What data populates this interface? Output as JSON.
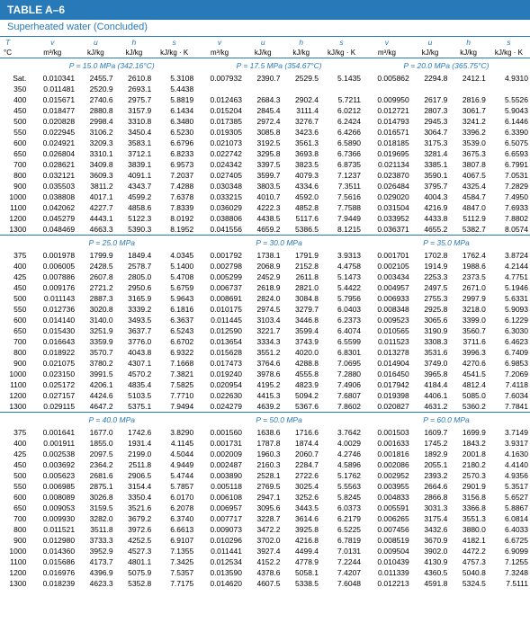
{
  "table_label": "TABLE A–6",
  "subtitle": "Superheated water (Concluded)",
  "header": {
    "T": "T",
    "T_unit": "°C",
    "v": "v",
    "v_unit": "m³/kg",
    "u": "u",
    "u_unit": "kJ/kg",
    "h": "h",
    "h_unit": "kJ/kg",
    "s": "s",
    "s_unit": "kJ/kg · K"
  },
  "blocks": [
    {
      "pressures": [
        "P = 15.0 MPa (342.16°C)",
        "P = 17.5 MPa (354.67°C)",
        "P = 20.0 MPa (365.75°C)"
      ],
      "rows": [
        {
          "T": "Sat.",
          "a": [
            "0.010341",
            "2455.7",
            "2610.8",
            "5.3108"
          ],
          "b": [
            "0.007932",
            "2390.7",
            "2529.5",
            "5.1435"
          ],
          "c": [
            "0.005862",
            "2294.8",
            "2412.1",
            "4.9310"
          ]
        },
        {
          "T": "350",
          "a": [
            "0.011481",
            "2520.9",
            "2693.1",
            "5.4438"
          ],
          "b": [
            "",
            "",
            "",
            ""
          ],
          "c": [
            "",
            "",
            "",
            ""
          ]
        },
        {
          "T": "400",
          "a": [
            "0.015671",
            "2740.6",
            "2975.7",
            "5.8819"
          ],
          "b": [
            "0.012463",
            "2684.3",
            "2902.4",
            "5.7211"
          ],
          "c": [
            "0.009950",
            "2617.9",
            "2816.9",
            "5.5526"
          ]
        },
        {
          "T": "450",
          "a": [
            "0.018477",
            "2880.8",
            "3157.9",
            "6.1434"
          ],
          "b": [
            "0.015204",
            "2845.4",
            "3111.4",
            "6.0212"
          ],
          "c": [
            "0.012721",
            "2807.3",
            "3061.7",
            "5.9043"
          ]
        },
        {
          "T": "500",
          "a": [
            "0.020828",
            "2998.4",
            "3310.8",
            "6.3480"
          ],
          "b": [
            "0.017385",
            "2972.4",
            "3276.7",
            "6.2424"
          ],
          "c": [
            "0.014793",
            "2945.3",
            "3241.2",
            "6.1446"
          ]
        },
        {
          "T": "550",
          "a": [
            "0.022945",
            "3106.2",
            "3450.4",
            "6.5230"
          ],
          "b": [
            "0.019305",
            "3085.8",
            "3423.6",
            "6.4266"
          ],
          "c": [
            "0.016571",
            "3064.7",
            "3396.2",
            "6.3390"
          ]
        },
        {
          "T": "600",
          "a": [
            "0.024921",
            "3209.3",
            "3583.1",
            "6.6796"
          ],
          "b": [
            "0.021073",
            "3192.5",
            "3561.3",
            "6.5890"
          ],
          "c": [
            "0.018185",
            "3175.3",
            "3539.0",
            "6.5075"
          ]
        },
        {
          "T": "650",
          "a": [
            "0.026804",
            "3310.1",
            "3712.1",
            "6.8233"
          ],
          "b": [
            "0.022742",
            "3295.8",
            "3693.8",
            "6.7366"
          ],
          "c": [
            "0.019695",
            "3281.4",
            "3675.3",
            "6.6593"
          ]
        },
        {
          "T": "700",
          "a": [
            "0.028621",
            "3409.8",
            "3839.1",
            "6.9573"
          ],
          "b": [
            "0.024342",
            "3397.5",
            "3823.5",
            "6.8735"
          ],
          "c": [
            "0.021134",
            "3385.1",
            "3807.8",
            "6.7991"
          ]
        },
        {
          "T": "800",
          "a": [
            "0.032121",
            "3609.3",
            "4091.1",
            "7.2037"
          ],
          "b": [
            "0.027405",
            "3599.7",
            "4079.3",
            "7.1237"
          ],
          "c": [
            "0.023870",
            "3590.1",
            "4067.5",
            "7.0531"
          ]
        },
        {
          "T": "900",
          "a": [
            "0.035503",
            "3811.2",
            "4343.7",
            "7.4288"
          ],
          "b": [
            "0.030348",
            "3803.5",
            "4334.6",
            "7.3511"
          ],
          "c": [
            "0.026484",
            "3795.7",
            "4325.4",
            "7.2829"
          ]
        },
        {
          "T": "1000",
          "a": [
            "0.038808",
            "4017.1",
            "4599.2",
            "7.6378"
          ],
          "b": [
            "0.033215",
            "4010.7",
            "4592.0",
            "7.5616"
          ],
          "c": [
            "0.029020",
            "4004.3",
            "4584.7",
            "7.4950"
          ]
        },
        {
          "T": "1100",
          "a": [
            "0.042062",
            "4227.7",
            "4858.6",
            "7.8339"
          ],
          "b": [
            "0.036029",
            "4222.3",
            "4852.8",
            "7.7588"
          ],
          "c": [
            "0.031504",
            "4216.9",
            "4847.0",
            "7.6933"
          ]
        },
        {
          "T": "1200",
          "a": [
            "0.045279",
            "4443.1",
            "5122.3",
            "8.0192"
          ],
          "b": [
            "0.038806",
            "4438.5",
            "5117.6",
            "7.9449"
          ],
          "c": [
            "0.033952",
            "4433.8",
            "5112.9",
            "7.8802"
          ]
        },
        {
          "T": "1300",
          "a": [
            "0.048469",
            "4663.3",
            "5390.3",
            "8.1952"
          ],
          "b": [
            "0.041556",
            "4659.2",
            "5386.5",
            "8.1215"
          ],
          "c": [
            "0.036371",
            "4655.2",
            "5382.7",
            "8.0574"
          ]
        }
      ]
    },
    {
      "pressures": [
        "P = 25.0 MPa",
        "P = 30.0 MPa",
        "P = 35.0 MPa"
      ],
      "rows": [
        {
          "T": "375",
          "a": [
            "0.001978",
            "1799.9",
            "1849.4",
            "4.0345"
          ],
          "b": [
            "0.001792",
            "1738.1",
            "1791.9",
            "3.9313"
          ],
          "c": [
            "0.001701",
            "1702.8",
            "1762.4",
            "3.8724"
          ]
        },
        {
          "T": "400",
          "a": [
            "0.006005",
            "2428.5",
            "2578.7",
            "5.1400"
          ],
          "b": [
            "0.002798",
            "2068.9",
            "2152.8",
            "4.4758"
          ],
          "c": [
            "0.002105",
            "1914.9",
            "1988.6",
            "4.2144"
          ]
        },
        {
          "T": "425",
          "a": [
            "0.007886",
            "2607.8",
            "2805.0",
            "5.4708"
          ],
          "b": [
            "0.005299",
            "2452.9",
            "2611.8",
            "5.1473"
          ],
          "c": [
            "0.003434",
            "2253.3",
            "2373.5",
            "4.7751"
          ]
        },
        {
          "T": "450",
          "a": [
            "0.009176",
            "2721.2",
            "2950.6",
            "5.6759"
          ],
          "b": [
            "0.006737",
            "2618.9",
            "2821.0",
            "5.4422"
          ],
          "c": [
            "0.004957",
            "2497.5",
            "2671.0",
            "5.1946"
          ]
        },
        {
          "T": "500",
          "a": [
            "0.011143",
            "2887.3",
            "3165.9",
            "5.9643"
          ],
          "b": [
            "0.008691",
            "2824.0",
            "3084.8",
            "5.7956"
          ],
          "c": [
            "0.006933",
            "2755.3",
            "2997.9",
            "5.6331"
          ]
        },
        {
          "T": "550",
          "a": [
            "0.012736",
            "3020.8",
            "3339.2",
            "6.1816"
          ],
          "b": [
            "0.010175",
            "2974.5",
            "3279.7",
            "6.0403"
          ],
          "c": [
            "0.008348",
            "2925.8",
            "3218.0",
            "5.9093"
          ]
        },
        {
          "T": "600",
          "a": [
            "0.014140",
            "3140.0",
            "3493.5",
            "6.3637"
          ],
          "b": [
            "0.011445",
            "3103.4",
            "3446.8",
            "6.2373"
          ],
          "c": [
            "0.009523",
            "3065.6",
            "3399.0",
            "6.1229"
          ]
        },
        {
          "T": "650",
          "a": [
            "0.015430",
            "3251.9",
            "3637.7",
            "6.5243"
          ],
          "b": [
            "0.012590",
            "3221.7",
            "3599.4",
            "6.4074"
          ],
          "c": [
            "0.010565",
            "3190.9",
            "3560.7",
            "6.3030"
          ]
        },
        {
          "T": "700",
          "a": [
            "0.016643",
            "3359.9",
            "3776.0",
            "6.6702"
          ],
          "b": [
            "0.013654",
            "3334.3",
            "3743.9",
            "6.5599"
          ],
          "c": [
            "0.011523",
            "3308.3",
            "3711.6",
            "6.4623"
          ]
        },
        {
          "T": "800",
          "a": [
            "0.018922",
            "3570.7",
            "4043.8",
            "6.9322"
          ],
          "b": [
            "0.015628",
            "3551.2",
            "4020.0",
            "6.8301"
          ],
          "c": [
            "0.013278",
            "3531.6",
            "3996.3",
            "6.7409"
          ]
        },
        {
          "T": "900",
          "a": [
            "0.021075",
            "3780.2",
            "4307.1",
            "7.1668"
          ],
          "b": [
            "0.017473",
            "3764.6",
            "4288.8",
            "7.0695"
          ],
          "c": [
            "0.014904",
            "3749.0",
            "4270.6",
            "6.9853"
          ]
        },
        {
          "T": "1000",
          "a": [
            "0.023150",
            "3991.5",
            "4570.2",
            "7.3821"
          ],
          "b": [
            "0.019240",
            "3978.6",
            "4555.8",
            "7.2880"
          ],
          "c": [
            "0.016450",
            "3965.8",
            "4541.5",
            "7.2069"
          ]
        },
        {
          "T": "1100",
          "a": [
            "0.025172",
            "4206.1",
            "4835.4",
            "7.5825"
          ],
          "b": [
            "0.020954",
            "4195.2",
            "4823.9",
            "7.4906"
          ],
          "c": [
            "0.017942",
            "4184.4",
            "4812.4",
            "7.4118"
          ]
        },
        {
          "T": "1200",
          "a": [
            "0.027157",
            "4424.6",
            "5103.5",
            "7.7710"
          ],
          "b": [
            "0.022630",
            "4415.3",
            "5094.2",
            "7.6807"
          ],
          "c": [
            "0.019398",
            "4406.1",
            "5085.0",
            "7.6034"
          ]
        },
        {
          "T": "1300",
          "a": [
            "0.029115",
            "4647.2",
            "5375.1",
            "7.9494"
          ],
          "b": [
            "0.024279",
            "4639.2",
            "5367.6",
            "7.8602"
          ],
          "c": [
            "0.020827",
            "4631.2",
            "5360.2",
            "7.7841"
          ]
        }
      ]
    },
    {
      "pressures": [
        "P = 40.0 MPa",
        "P = 50.0 MPa",
        "P = 60.0 MPa"
      ],
      "rows": [
        {
          "T": "375",
          "a": [
            "0.001641",
            "1677.0",
            "1742.6",
            "3.8290"
          ],
          "b": [
            "0.001560",
            "1638.6",
            "1716.6",
            "3.7642"
          ],
          "c": [
            "0.001503",
            "1609.7",
            "1699.9",
            "3.7149"
          ]
        },
        {
          "T": "400",
          "a": [
            "0.001911",
            "1855.0",
            "1931.4",
            "4.1145"
          ],
          "b": [
            "0.001731",
            "1787.8",
            "1874.4",
            "4.0029"
          ],
          "c": [
            "0.001633",
            "1745.2",
            "1843.2",
            "3.9317"
          ]
        },
        {
          "T": "425",
          "a": [
            "0.002538",
            "2097.5",
            "2199.0",
            "4.5044"
          ],
          "b": [
            "0.002009",
            "1960.3",
            "2060.7",
            "4.2746"
          ],
          "c": [
            "0.001816",
            "1892.9",
            "2001.8",
            "4.1630"
          ]
        },
        {
          "T": "450",
          "a": [
            "0.003692",
            "2364.2",
            "2511.8",
            "4.9449"
          ],
          "b": [
            "0.002487",
            "2160.3",
            "2284.7",
            "4.5896"
          ],
          "c": [
            "0.002086",
            "2055.1",
            "2180.2",
            "4.4140"
          ]
        },
        {
          "T": "500",
          "a": [
            "0.005623",
            "2681.6",
            "2906.5",
            "5.4744"
          ],
          "b": [
            "0.003890",
            "2528.1",
            "2722.6",
            "5.1762"
          ],
          "c": [
            "0.002952",
            "2393.2",
            "2570.3",
            "4.9356"
          ]
        },
        {
          "T": "550",
          "a": [
            "0.006985",
            "2875.1",
            "3154.4",
            "5.7857"
          ],
          "b": [
            "0.005118",
            "2769.5",
            "3025.4",
            "5.5563"
          ],
          "c": [
            "0.003955",
            "2664.6",
            "2901.9",
            "5.3517"
          ]
        },
        {
          "T": "600",
          "a": [
            "0.008089",
            "3026.8",
            "3350.4",
            "6.0170"
          ],
          "b": [
            "0.006108",
            "2947.1",
            "3252.6",
            "5.8245"
          ],
          "c": [
            "0.004833",
            "2866.8",
            "3156.8",
            "5.6527"
          ]
        },
        {
          "T": "650",
          "a": [
            "0.009053",
            "3159.5",
            "3521.6",
            "6.2078"
          ],
          "b": [
            "0.006957",
            "3095.6",
            "3443.5",
            "6.0373"
          ],
          "c": [
            "0.005591",
            "3031.3",
            "3366.8",
            "5.8867"
          ]
        },
        {
          "T": "700",
          "a": [
            "0.009930",
            "3282.0",
            "3679.2",
            "6.3740"
          ],
          "b": [
            "0.007717",
            "3228.7",
            "3614.6",
            "6.2179"
          ],
          "c": [
            "0.006265",
            "3175.4",
            "3551.3",
            "6.0814"
          ]
        },
        {
          "T": "800",
          "a": [
            "0.011521",
            "3511.8",
            "3972.6",
            "6.6613"
          ],
          "b": [
            "0.009073",
            "3472.2",
            "3925.8",
            "6.5225"
          ],
          "c": [
            "0.007456",
            "3432.6",
            "3880.0",
            "6.4033"
          ]
        },
        {
          "T": "900",
          "a": [
            "0.012980",
            "3733.3",
            "4252.5",
            "6.9107"
          ],
          "b": [
            "0.010296",
            "3702.0",
            "4216.8",
            "6.7819"
          ],
          "c": [
            "0.008519",
            "3670.9",
            "4182.1",
            "6.6725"
          ]
        },
        {
          "T": "1000",
          "a": [
            "0.014360",
            "3952.9",
            "4527.3",
            "7.1355"
          ],
          "b": [
            "0.011441",
            "3927.4",
            "4499.4",
            "7.0131"
          ],
          "c": [
            "0.009504",
            "3902.0",
            "4472.2",
            "6.9099"
          ]
        },
        {
          "T": "1100",
          "a": [
            "0.015686",
            "4173.7",
            "4801.1",
            "7.3425"
          ],
          "b": [
            "0.012534",
            "4152.2",
            "4778.9",
            "7.2244"
          ],
          "c": [
            "0.010439",
            "4130.9",
            "4757.3",
            "7.1255"
          ]
        },
        {
          "T": "1200",
          "a": [
            "0.016976",
            "4396.9",
            "5075.9",
            "7.5357"
          ],
          "b": [
            "0.013590",
            "4378.6",
            "5058.1",
            "7.4207"
          ],
          "c": [
            "0.011339",
            "4360.5",
            "5040.8",
            "7.3248"
          ]
        },
        {
          "T": "1300",
          "a": [
            "0.018239",
            "4623.3",
            "5352.8",
            "7.7175"
          ],
          "b": [
            "0.014620",
            "4607.5",
            "5338.5",
            "7.6048"
          ],
          "c": [
            "0.012213",
            "4591.8",
            "5324.5",
            "7.5111"
          ]
        }
      ]
    }
  ],
  "colors": {
    "header_bg": "#2879b8",
    "header_fg": "#ffffff",
    "accent": "#2879b8"
  }
}
